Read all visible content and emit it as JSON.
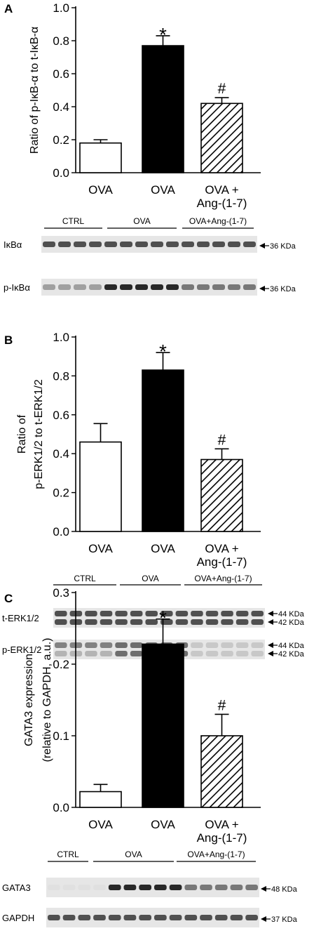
{
  "chart_data": [
    {
      "type": "bar",
      "panel": "A",
      "ylabel": "Ratio of p-IκB-α to t-IκB-α",
      "ylim": [
        0,
        1.0
      ],
      "yticks": [
        "0.0",
        "0.2",
        "0.4",
        "0.6",
        "0.8",
        "1.0"
      ],
      "yticks_values": [
        0,
        0.2,
        0.4,
        0.6,
        0.8,
        1.0
      ],
      "categories": [
        "OVA",
        "OVA",
        "OVA + Ang-(1-7)"
      ],
      "category_lines": [
        [
          "OVA"
        ],
        [
          "OVA"
        ],
        [
          "OVA +",
          "Ang-(1-7)"
        ]
      ],
      "values": [
        0.18,
        0.77,
        0.42
      ],
      "errors": [
        0.02,
        0.06,
        0.035
      ],
      "fills": [
        "white",
        "black",
        "hatch"
      ],
      "annotations": [
        "",
        "*",
        "#"
      ],
      "blot": {
        "groups": [
          "CTRL",
          "OVA",
          "OVA+Ang-(1-7)"
        ],
        "rows": [
          {
            "label": "IκBα",
            "markers": [
              "36 KDa"
            ]
          },
          {
            "label": "p-IκBα",
            "markers": [
              "36 KDa"
            ]
          }
        ]
      }
    },
    {
      "type": "bar",
      "panel": "B",
      "ylabel_lines": [
        "Ratio of",
        "p-ERK1/2  to  t-ERK1/2"
      ],
      "ylim": [
        0,
        1.0
      ],
      "yticks": [
        "0.0",
        "0.2",
        "0.4",
        "0.6",
        "0.8",
        "1.0"
      ],
      "yticks_values": [
        0,
        0.2,
        0.4,
        0.6,
        0.8,
        1.0
      ],
      "categories": [
        "OVA",
        "OVA",
        "OVA + Ang-(1-7)"
      ],
      "category_lines": [
        [
          "OVA"
        ],
        [
          "OVA"
        ],
        [
          "OVA +",
          "Ang-(1-7)"
        ]
      ],
      "values": [
        0.46,
        0.83,
        0.37
      ],
      "errors": [
        0.095,
        0.09,
        0.055
      ],
      "fills": [
        "white",
        "black",
        "hatch"
      ],
      "annotations": [
        "",
        "*",
        "#"
      ],
      "blot": {
        "groups": [
          "CTRL",
          "OVA",
          "OVA+Ang-(1-7)"
        ],
        "rows": [
          {
            "label": "t-ERK1/2",
            "markers": [
              "44 KDa",
              "42 KDa"
            ]
          },
          {
            "label": "p-ERK1/2",
            "markers": [
              "44 KDa",
              "42 KDa"
            ]
          }
        ]
      }
    },
    {
      "type": "bar",
      "panel": "C",
      "ylabel_lines": [
        "GATA3 expression",
        "(relative to GAPDH, a.u.)"
      ],
      "ylim": [
        0,
        0.3
      ],
      "yticks": [
        "0.0",
        "0.1",
        "0.2",
        "0.3"
      ],
      "yticks_values": [
        0,
        0.1,
        0.2,
        0.3
      ],
      "categories": [
        "OVA",
        "OVA",
        "OVA + Ang-(1-7)"
      ],
      "category_lines": [
        [
          "OVA"
        ],
        [
          "OVA"
        ],
        [
          "OVA +",
          "Ang-(1-7)"
        ]
      ],
      "values": [
        0.022,
        0.228,
        0.1
      ],
      "errors": [
        0.01,
        0.035,
        0.03
      ],
      "fills": [
        "white",
        "black",
        "hatch"
      ],
      "annotations": [
        "",
        "*",
        "#"
      ],
      "blot": {
        "groups": [
          "CTRL",
          "OVA",
          "OVA+Ang-(1-7)"
        ],
        "rows": [
          {
            "label": "GATA3",
            "markers": [
              "48 KDa"
            ]
          },
          {
            "label": "GAPDH",
            "markers": [
              "37 KDa"
            ]
          }
        ]
      }
    }
  ]
}
